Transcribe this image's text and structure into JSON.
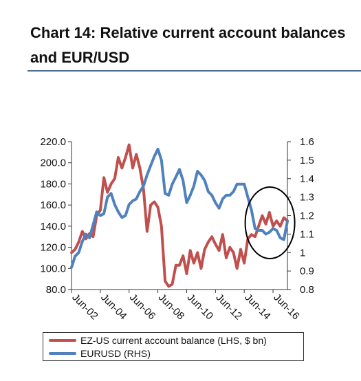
{
  "header": {
    "title": "Chart 14: Relative current account balances and EUR/USD"
  },
  "chart_data": {
    "type": "line",
    "title": "Chart 14: Relative current account balances and EUR/USD",
    "x": [
      "Jun-02",
      "Sep-02",
      "Dec-02",
      "Mar-03",
      "Jun-03",
      "Sep-03",
      "Dec-03",
      "Mar-04",
      "Jun-04",
      "Sep-04",
      "Dec-04",
      "Mar-05",
      "Jun-05",
      "Sep-05",
      "Dec-05",
      "Mar-06",
      "Jun-06",
      "Sep-06",
      "Dec-06",
      "Mar-07",
      "Jun-07",
      "Sep-07",
      "Dec-07",
      "Mar-08",
      "Jun-08",
      "Sep-08",
      "Dec-08",
      "Mar-09",
      "Jun-09",
      "Sep-09",
      "Dec-09",
      "Mar-10",
      "Jun-10",
      "Sep-10",
      "Dec-10",
      "Mar-11",
      "Jun-11",
      "Sep-11",
      "Dec-11",
      "Mar-12",
      "Jun-12",
      "Sep-12",
      "Dec-12",
      "Mar-13",
      "Jun-13",
      "Sep-13",
      "Dec-13",
      "Mar-14",
      "Jun-14",
      "Sep-14",
      "Dec-14",
      "Mar-15",
      "Jun-15",
      "Sep-15",
      "Dec-15",
      "Mar-16",
      "Jun-16",
      "Sep-16",
      "Dec-16",
      "Mar-17",
      "Jun-17"
    ],
    "x_tick_labels": [
      "Jun-02",
      "Jun-04",
      "Jun-06",
      "Jun-08",
      "Jun-10",
      "Jun-12",
      "Jun-14",
      "Jun-16"
    ],
    "series": [
      {
        "name": "EZ-US current account balance (LHS, $ bn)",
        "axis": "left",
        "color": "#c0504d",
        "values": [
          115,
          118,
          125,
          135,
          128,
          133,
          130,
          150,
          155,
          186,
          172,
          180,
          185,
          205,
          195,
          205,
          217,
          195,
          208,
          195,
          175,
          135,
          160,
          163,
          158,
          140,
          88,
          83,
          85,
          103,
          103,
          112,
          95,
          117,
          105,
          115,
          100,
          118,
          125,
          130,
          123,
          117,
          132,
          110,
          120,
          115,
          100,
          118,
          105,
          128,
          132,
          130,
          140,
          150,
          142,
          153,
          140,
          145,
          140,
          148,
          145
        ]
      },
      {
        "name": "EURUSD (RHS)",
        "axis": "right",
        "color": "#4f81bd",
        "values": [
          0.92,
          0.98,
          1.0,
          1.06,
          1.1,
          1.08,
          1.15,
          1.22,
          1.2,
          1.21,
          1.3,
          1.32,
          1.26,
          1.22,
          1.19,
          1.2,
          1.26,
          1.28,
          1.29,
          1.33,
          1.36,
          1.42,
          1.47,
          1.52,
          1.56,
          1.5,
          1.32,
          1.31,
          1.37,
          1.41,
          1.45,
          1.39,
          1.27,
          1.31,
          1.36,
          1.44,
          1.42,
          1.39,
          1.33,
          1.31,
          1.27,
          1.24,
          1.29,
          1.31,
          1.31,
          1.33,
          1.37,
          1.37,
          1.37,
          1.3,
          1.23,
          1.13,
          1.12,
          1.12,
          1.1,
          1.11,
          1.13,
          1.12,
          1.08,
          1.07,
          1.17
        ]
      }
    ],
    "y_left": {
      "ylim": [
        80.0,
        220.0
      ],
      "ticks": [
        "80.0",
        "100.0",
        "120.0",
        "140.0",
        "160.0",
        "180.0",
        "200.0",
        "220.0"
      ]
    },
    "y_right": {
      "ylim": [
        0.8,
        1.6
      ],
      "ticks": [
        "0.8",
        "0.9",
        "1",
        "1.1",
        "1.2",
        "1.3",
        "1.4",
        "1.5",
        "1.6"
      ]
    },
    "annotation": "ellipse highlighting Jun-14 to Jun-17",
    "grid": false,
    "legend": "bottom"
  },
  "legend": [
    {
      "label": "EZ-US current account balance (LHS, $ bn)",
      "color": "#c0504d"
    },
    {
      "label": "EURUSD (RHS)",
      "color": "#4f81bd"
    }
  ]
}
